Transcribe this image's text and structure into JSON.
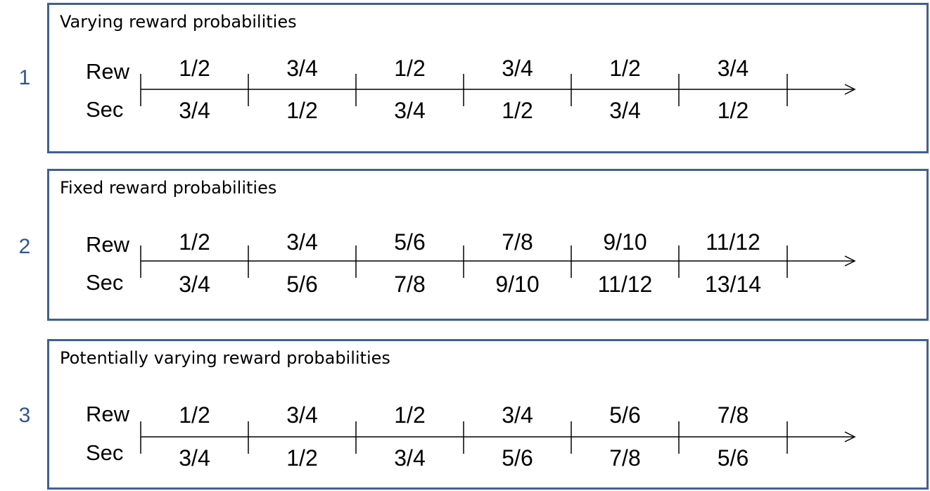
{
  "panels": [
    {
      "number": "1",
      "title": "Varying reward probabilities",
      "row_labels": {
        "rew": "Rew",
        "sec": "Sec"
      },
      "rew": [
        "1/2",
        "3/4",
        "1/2",
        "3/4",
        "1/2",
        "3/4"
      ],
      "sec": [
        "3/4",
        "1/2",
        "3/4",
        "1/2",
        "3/4",
        "1/2"
      ]
    },
    {
      "number": "2",
      "title": "Fixed reward probabilities",
      "row_labels": {
        "rew": "Rew",
        "sec": "Sec"
      },
      "rew": [
        "1/2",
        "3/4",
        "5/6",
        "7/8",
        "9/10",
        "11/12"
      ],
      "sec": [
        "3/4",
        "5/6",
        "7/8",
        "9/10",
        "11/12",
        "13/14"
      ]
    },
    {
      "number": "3",
      "title": "Potentially varying reward probabilities",
      "row_labels": {
        "rew": "Rew",
        "sec": "Sec"
      },
      "rew": [
        "1/2",
        "3/4",
        "1/2",
        "3/4",
        "5/6",
        "7/8"
      ],
      "sec": [
        "3/4",
        "1/2",
        "3/4",
        "5/6",
        "7/8",
        "5/6"
      ]
    }
  ],
  "colors": {
    "number": "#2f5597",
    "border": "#41608f",
    "text": "#000000"
  }
}
